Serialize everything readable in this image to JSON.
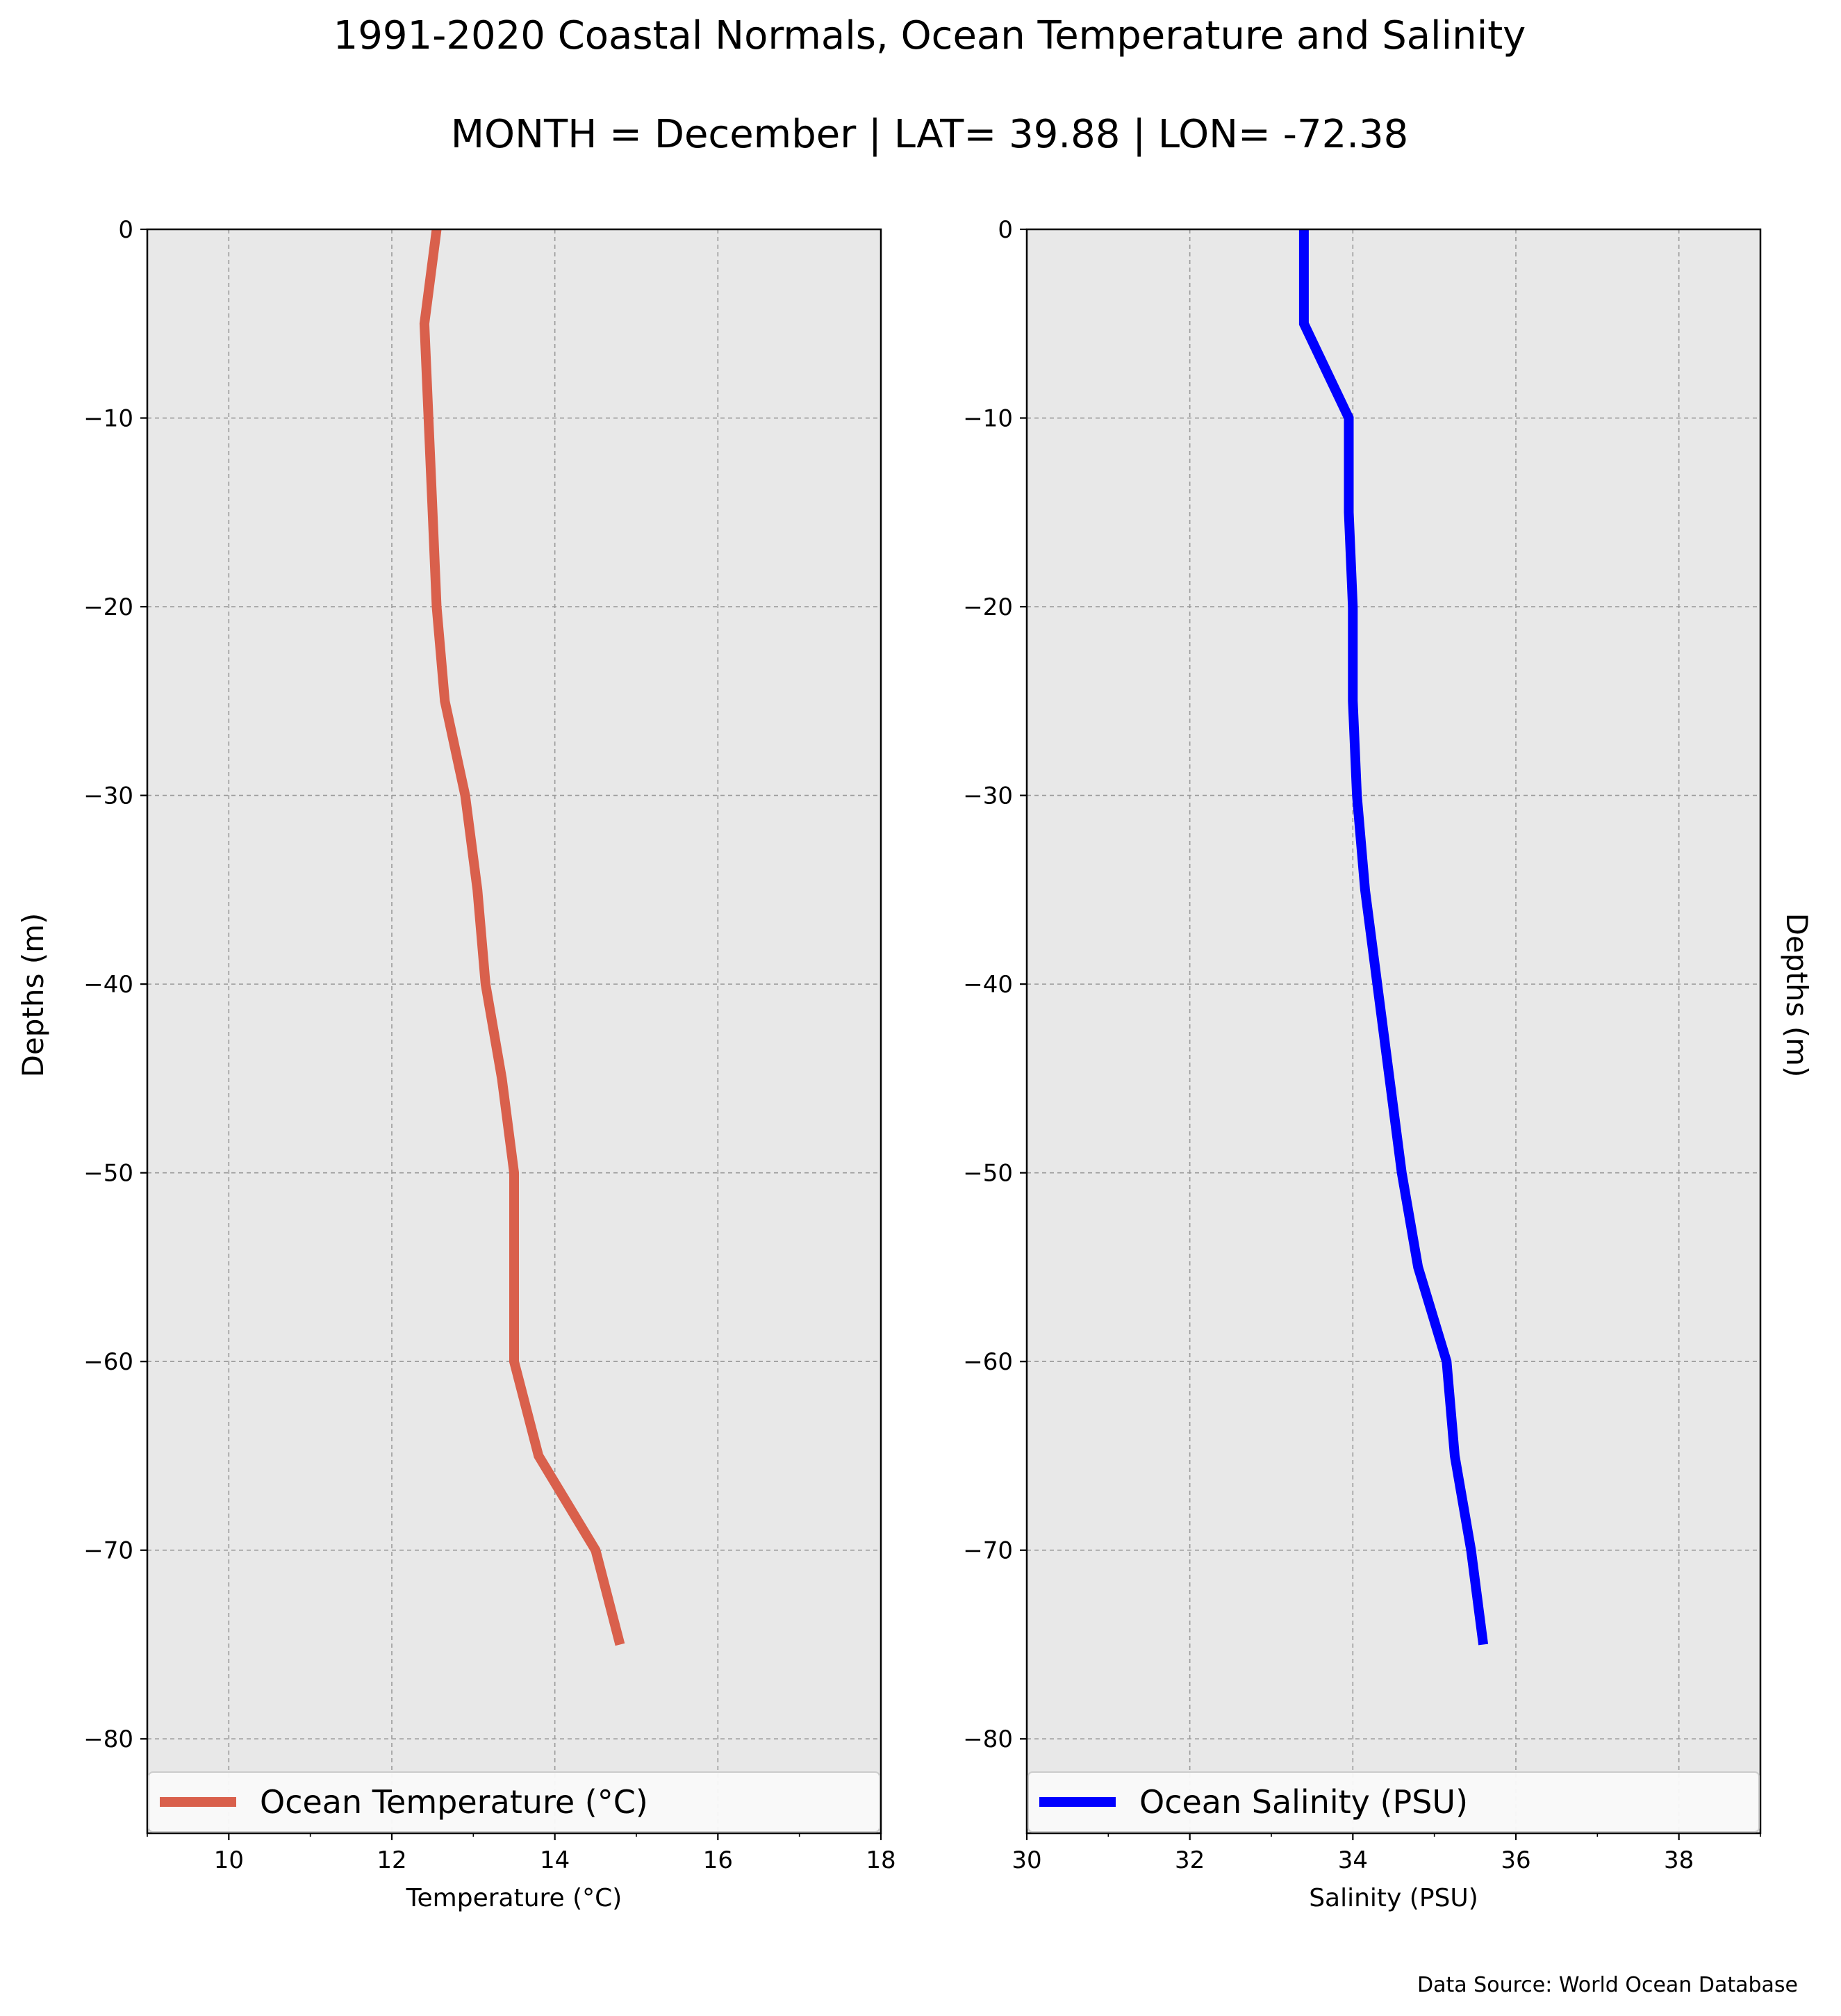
{
  "title": "1991-2020 Coastal Normals, Ocean Temperature and Salinity",
  "subtitle": "MONTH = December | LAT= 39.88 | LON= -72.38",
  "source": "Data Source: World Ocean Database",
  "colors": {
    "panel_bg": "#e8e8e8",
    "grid": "#9a9a9a",
    "temperature": "#d9604c",
    "salinity": "#0000ff"
  },
  "chart_data": [
    {
      "type": "line",
      "xlabel": "Temperature (°C)",
      "ylabel": "Depths (m)",
      "xlim": [
        9,
        18
      ],
      "ylim": [
        -85,
        0
      ],
      "xticks": [
        10,
        12,
        14,
        16,
        18
      ],
      "yticks": [
        0,
        -10,
        -20,
        -30,
        -40,
        -50,
        -60,
        -70,
        -80
      ],
      "grid": true,
      "legend_position": "bottom",
      "series": [
        {
          "name": "Ocean Temperature (°C)",
          "x": [
            12.55,
            12.4,
            12.45,
            12.5,
            12.55,
            12.65,
            12.9,
            13.05,
            13.15,
            13.35,
            13.5,
            13.5,
            13.5,
            13.8,
            14.5,
            14.8
          ],
          "y": [
            0,
            -5,
            -10,
            -15,
            -20,
            -25,
            -30,
            -35,
            -40,
            -45,
            -50,
            -55,
            -60,
            -65,
            -70,
            -75
          ]
        }
      ]
    },
    {
      "type": "line",
      "xlabel": "Salinity (PSU)",
      "ylabel": "Depths (m)",
      "xlim": [
        30,
        39
      ],
      "ylim": [
        -85,
        0
      ],
      "xticks": [
        30,
        32,
        34,
        36,
        38
      ],
      "yticks": [
        0,
        -10,
        -20,
        -30,
        -40,
        -50,
        -60,
        -70,
        -80
      ],
      "grid": true,
      "legend_position": "bottom",
      "series": [
        {
          "name": "Ocean Salinity (PSU)",
          "x": [
            33.4,
            33.4,
            33.95,
            33.95,
            34.0,
            34.0,
            34.05,
            34.15,
            34.3,
            34.45,
            34.6,
            34.8,
            35.15,
            35.25,
            35.45,
            35.6
          ],
          "y": [
            0,
            -5,
            -10,
            -15,
            -20,
            -25,
            -30,
            -35,
            -40,
            -45,
            -50,
            -55,
            -60,
            -65,
            -70,
            -75
          ]
        }
      ]
    }
  ]
}
